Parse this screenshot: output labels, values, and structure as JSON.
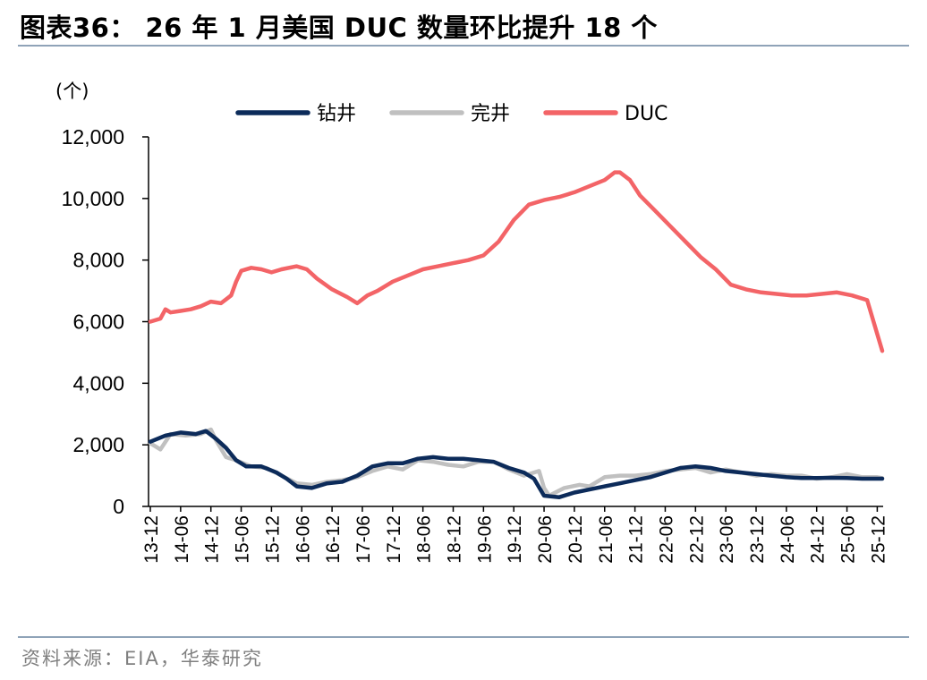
{
  "title": "图表36： 26 年 1 月美国 DUC 数量环比提升 18 个",
  "source": "资料来源：EIA，华泰研究",
  "colors": {
    "drilled": "#0c2b5a",
    "completed": "#c0c0c0",
    "duc": "#f36467",
    "rule": "#8fa3b8"
  },
  "chart_data": {
    "type": "line",
    "unit_label": "(个)",
    "ylim": [
      0,
      12000
    ],
    "yticks": [
      0,
      2000,
      4000,
      6000,
      8000,
      10000,
      12000
    ],
    "ytick_labels": [
      "0",
      "2,000",
      "4,000",
      "6,000",
      "8,000",
      "10,000",
      "12,000"
    ],
    "x_tick_labels": [
      "13-12",
      "14-06",
      "14-12",
      "15-06",
      "15-12",
      "16-06",
      "16-12",
      "17-06",
      "17-12",
      "18-06",
      "18-12",
      "19-06",
      "19-12",
      "20-06",
      "20-12",
      "21-06",
      "21-12",
      "22-06",
      "22-12",
      "23-06",
      "23-12",
      "24-06",
      "24-12",
      "25-06",
      "25-12"
    ],
    "x_start": "2013-12",
    "x_end": "2026-01",
    "legend_position": "top",
    "series": [
      {
        "name": "钻井",
        "key": "drilled",
        "points": [
          [
            "2013-12",
            2100
          ],
          [
            "2014-03",
            2300
          ],
          [
            "2014-06",
            2400
          ],
          [
            "2014-09",
            2350
          ],
          [
            "2014-11",
            2450
          ],
          [
            "2015-01",
            2200
          ],
          [
            "2015-03",
            1900
          ],
          [
            "2015-05",
            1500
          ],
          [
            "2015-07",
            1300
          ],
          [
            "2015-10",
            1300
          ],
          [
            "2016-01",
            1100
          ],
          [
            "2016-03",
            900
          ],
          [
            "2016-05",
            650
          ],
          [
            "2016-08",
            600
          ],
          [
            "2016-11",
            750
          ],
          [
            "2017-02",
            800
          ],
          [
            "2017-05",
            1000
          ],
          [
            "2017-08",
            1300
          ],
          [
            "2017-11",
            1400
          ],
          [
            "2018-02",
            1400
          ],
          [
            "2018-05",
            1550
          ],
          [
            "2018-08",
            1600
          ],
          [
            "2018-11",
            1550
          ],
          [
            "2019-02",
            1550
          ],
          [
            "2019-05",
            1500
          ],
          [
            "2019-08",
            1450
          ],
          [
            "2019-11",
            1250
          ],
          [
            "2020-02",
            1100
          ],
          [
            "2020-04",
            900
          ],
          [
            "2020-06",
            350
          ],
          [
            "2020-09",
            300
          ],
          [
            "2020-12",
            450
          ],
          [
            "2021-03",
            550
          ],
          [
            "2021-06",
            650
          ],
          [
            "2021-09",
            750
          ],
          [
            "2021-12",
            850
          ],
          [
            "2022-03",
            950
          ],
          [
            "2022-06",
            1100
          ],
          [
            "2022-09",
            1250
          ],
          [
            "2022-12",
            1300
          ],
          [
            "2023-03",
            1250
          ],
          [
            "2023-06",
            1150
          ],
          [
            "2023-09",
            1100
          ],
          [
            "2023-12",
            1050
          ],
          [
            "2024-03",
            1000
          ],
          [
            "2024-06",
            950
          ],
          [
            "2024-09",
            920
          ],
          [
            "2024-12",
            920
          ],
          [
            "2025-03",
            930
          ],
          [
            "2025-06",
            920
          ],
          [
            "2025-09",
            900
          ],
          [
            "2025-12",
            900
          ],
          [
            "2026-01",
            900
          ]
        ]
      },
      {
        "name": "完井",
        "key": "completed",
        "points": [
          [
            "2013-12",
            2050
          ],
          [
            "2014-02",
            1850
          ],
          [
            "2014-04",
            2350
          ],
          [
            "2014-07",
            2300
          ],
          [
            "2014-10",
            2350
          ],
          [
            "2014-12",
            2500
          ],
          [
            "2015-01",
            2150
          ],
          [
            "2015-03",
            1600
          ],
          [
            "2015-05",
            1500
          ],
          [
            "2015-08",
            1300
          ],
          [
            "2015-11",
            1250
          ],
          [
            "2016-02",
            1000
          ],
          [
            "2016-05",
            750
          ],
          [
            "2016-08",
            700
          ],
          [
            "2016-11",
            800
          ],
          [
            "2017-02",
            850
          ],
          [
            "2017-05",
            950
          ],
          [
            "2017-08",
            1150
          ],
          [
            "2017-11",
            1300
          ],
          [
            "2018-02",
            1200
          ],
          [
            "2018-05",
            1500
          ],
          [
            "2018-08",
            1450
          ],
          [
            "2018-11",
            1350
          ],
          [
            "2019-02",
            1300
          ],
          [
            "2019-05",
            1450
          ],
          [
            "2019-08",
            1450
          ],
          [
            "2019-11",
            1200
          ],
          [
            "2020-02",
            1000
          ],
          [
            "2020-05",
            1150
          ],
          [
            "2020-06",
            600
          ],
          [
            "2020-07",
            350
          ],
          [
            "2020-10",
            600
          ],
          [
            "2021-01",
            700
          ],
          [
            "2021-03",
            650
          ],
          [
            "2021-06",
            950
          ],
          [
            "2021-09",
            1000
          ],
          [
            "2021-12",
            1000
          ],
          [
            "2022-03",
            1050
          ],
          [
            "2022-06",
            1150
          ],
          [
            "2022-09",
            1200
          ],
          [
            "2022-12",
            1250
          ],
          [
            "2023-03",
            1100
          ],
          [
            "2023-06",
            1200
          ],
          [
            "2023-09",
            1100
          ],
          [
            "2023-12",
            1000
          ],
          [
            "2024-03",
            1050
          ],
          [
            "2024-06",
            1000
          ],
          [
            "2024-09",
            1000
          ],
          [
            "2024-12",
            900
          ],
          [
            "2025-03",
            950
          ],
          [
            "2025-06",
            1050
          ],
          [
            "2025-09",
            950
          ],
          [
            "2025-12",
            950
          ],
          [
            "2026-01",
            920
          ]
        ]
      },
      {
        "name": "DUC",
        "key": "duc",
        "points": [
          [
            "2013-12",
            6000
          ],
          [
            "2014-02",
            6100
          ],
          [
            "2014-03",
            6400
          ],
          [
            "2014-04",
            6300
          ],
          [
            "2014-06",
            6350
          ],
          [
            "2014-08",
            6400
          ],
          [
            "2014-10",
            6500
          ],
          [
            "2014-12",
            6650
          ],
          [
            "2015-02",
            6600
          ],
          [
            "2015-04",
            6850
          ],
          [
            "2015-05",
            7300
          ],
          [
            "2015-06",
            7650
          ],
          [
            "2015-08",
            7750
          ],
          [
            "2015-10",
            7700
          ],
          [
            "2015-12",
            7600
          ],
          [
            "2016-02",
            7700
          ],
          [
            "2016-05",
            7800
          ],
          [
            "2016-07",
            7700
          ],
          [
            "2016-09",
            7400
          ],
          [
            "2016-12",
            7050
          ],
          [
            "2017-03",
            6800
          ],
          [
            "2017-05",
            6600
          ],
          [
            "2017-07",
            6850
          ],
          [
            "2017-09",
            7000
          ],
          [
            "2017-12",
            7300
          ],
          [
            "2018-03",
            7500
          ],
          [
            "2018-06",
            7700
          ],
          [
            "2018-09",
            7800
          ],
          [
            "2018-12",
            7900
          ],
          [
            "2019-03",
            8000
          ],
          [
            "2019-06",
            8150
          ],
          [
            "2019-09",
            8600
          ],
          [
            "2019-12",
            9300
          ],
          [
            "2020-03",
            9800
          ],
          [
            "2020-06",
            9950
          ],
          [
            "2020-09",
            10050
          ],
          [
            "2020-12",
            10200
          ],
          [
            "2021-03",
            10400
          ],
          [
            "2021-06",
            10600
          ],
          [
            "2021-08",
            10850
          ],
          [
            "2021-09",
            10850
          ],
          [
            "2021-11",
            10600
          ],
          [
            "2022-01",
            10100
          ],
          [
            "2022-04",
            9600
          ],
          [
            "2022-07",
            9100
          ],
          [
            "2022-10",
            8600
          ],
          [
            "2023-01",
            8100
          ],
          [
            "2023-04",
            7700
          ],
          [
            "2023-07",
            7200
          ],
          [
            "2023-10",
            7050
          ],
          [
            "2024-01",
            6950
          ],
          [
            "2024-04",
            6900
          ],
          [
            "2024-07",
            6850
          ],
          [
            "2024-10",
            6850
          ],
          [
            "2025-01",
            6900
          ],
          [
            "2025-04",
            6950
          ],
          [
            "2025-07",
            6850
          ],
          [
            "2025-10",
            6700
          ],
          [
            "2026-01",
            5050
          ]
        ]
      }
    ]
  }
}
